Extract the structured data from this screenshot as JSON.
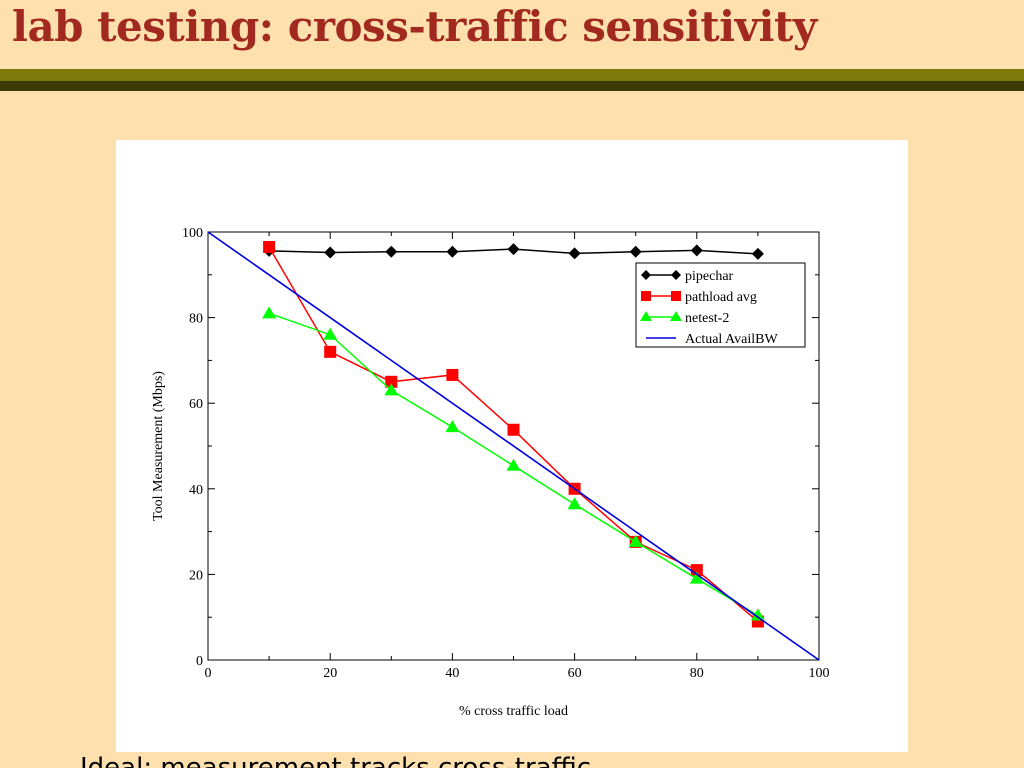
{
  "slide": {
    "title": "lab testing: cross-traffic sensitivity",
    "bottom_text": "Ideal: measurement tracks cross-traffic"
  },
  "colors": {
    "background": "#fde0ae",
    "title": "#a2291f",
    "bar_olive": "#7d7a0a",
    "bar_dark": "#3c3a05"
  },
  "chart_data": {
    "type": "line",
    "title": "",
    "xlabel": "% cross traffic load",
    "ylabel": "Tool Measurement (Mbps)",
    "xlim": [
      0,
      100
    ],
    "ylim": [
      0,
      100
    ],
    "x_ticks": [
      0,
      20,
      40,
      60,
      80,
      100
    ],
    "y_ticks": [
      0,
      20,
      40,
      60,
      80,
      100
    ],
    "grid": false,
    "legend_position": "top-right",
    "series": [
      {
        "name": "pipechar",
        "marker": "diamond",
        "color": "#000000",
        "points": [
          [
            10,
            95.6
          ],
          [
            20,
            95.2
          ],
          [
            30,
            95.4
          ],
          [
            40,
            95.4
          ],
          [
            50,
            96.0
          ],
          [
            60,
            95.0
          ],
          [
            70,
            95.4
          ],
          [
            80,
            95.7
          ],
          [
            90,
            94.9
          ]
        ]
      },
      {
        "name": "pathload avg",
        "marker": "square",
        "color": "#ff0000",
        "points": [
          [
            10,
            96.5
          ],
          [
            20,
            72.0
          ],
          [
            30,
            65.0
          ],
          [
            40,
            66.6
          ],
          [
            50,
            53.8
          ],
          [
            60,
            40.0
          ],
          [
            70,
            27.6
          ],
          [
            80,
            21.0
          ],
          [
            90,
            9.0
          ]
        ]
      },
      {
        "name": "netest-2",
        "marker": "triangle",
        "color": "#00ff00",
        "points": [
          [
            10,
            81.0
          ],
          [
            20,
            76.0
          ],
          [
            30,
            63.0
          ],
          [
            40,
            54.4
          ],
          [
            50,
            45.4
          ],
          [
            60,
            36.4
          ],
          [
            70,
            27.6
          ],
          [
            80,
            19.0
          ],
          [
            90,
            10.4
          ]
        ]
      },
      {
        "name": "Actual AvailBW",
        "marker": "none",
        "color": "#0000dd",
        "points": [
          [
            0,
            100
          ],
          [
            100,
            0
          ]
        ]
      }
    ]
  }
}
